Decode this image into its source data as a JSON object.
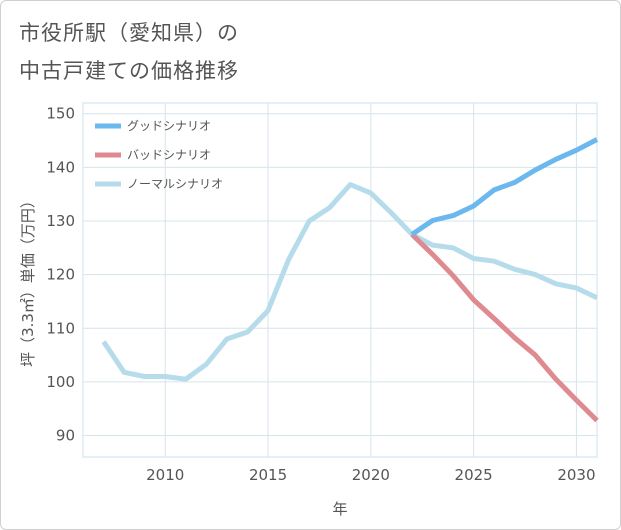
{
  "header": {
    "title_line1": "市役所駅（愛知県）の",
    "title_line2": "中古戸建ての価格推移"
  },
  "chart_data": {
    "type": "line",
    "xlabel": "年",
    "ylabel": "坪（3.3㎡）単価（万円）",
    "xlim": [
      2006,
      2031
    ],
    "ylim": [
      86,
      152
    ],
    "xticks": [
      2010,
      2015,
      2020,
      2025,
      2030
    ],
    "yticks": [
      90,
      100,
      110,
      120,
      130,
      140,
      150
    ],
    "legend_position": "top-left",
    "series": [
      {
        "name": "グッドシナリオ",
        "color": "#6bb8ef",
        "x": [
          2022,
          2023,
          2024,
          2025,
          2026,
          2027,
          2028,
          2029,
          2030,
          2031
        ],
        "y": [
          127.5,
          130.1,
          131.0,
          132.8,
          135.8,
          137.2,
          139.5,
          141.5,
          143.2,
          145.2
        ]
      },
      {
        "name": "バッドシナリオ",
        "color": "#df8a90",
        "x": [
          2022,
          2023,
          2024,
          2025,
          2026,
          2027,
          2028,
          2029,
          2030,
          2031
        ],
        "y": [
          127.5,
          123.8,
          119.8,
          115.3,
          111.8,
          108.2,
          105.0,
          100.5,
          96.6,
          92.8
        ]
      },
      {
        "name": "ノーマルシナリオ",
        "color": "#b6dcec",
        "x": [
          2007,
          2008,
          2009,
          2010,
          2011,
          2012,
          2013,
          2014,
          2015,
          2016,
          2017,
          2018,
          2019,
          2020,
          2021,
          2022,
          2023,
          2024,
          2025,
          2026,
          2027,
          2028,
          2029,
          2030,
          2031
        ],
        "y": [
          107.5,
          101.8,
          101.0,
          101.0,
          100.5,
          103.3,
          108.0,
          109.3,
          113.3,
          122.8,
          130.0,
          132.5,
          136.8,
          135.2,
          131.5,
          127.5,
          125.5,
          125.0,
          123.0,
          122.5,
          121.0,
          120.0,
          118.3,
          117.5,
          115.7
        ]
      }
    ]
  }
}
